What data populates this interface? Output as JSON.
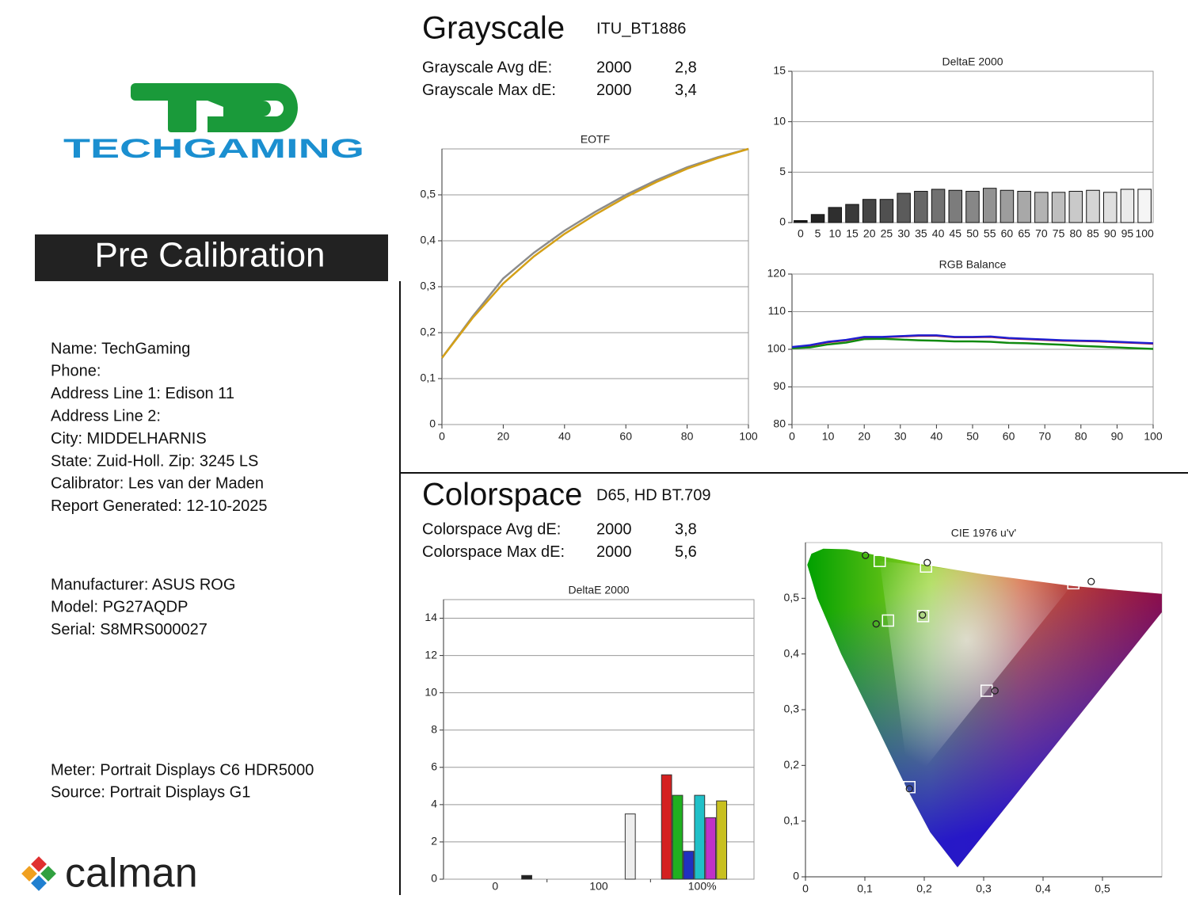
{
  "logo": {
    "brand": "TECHGAMING"
  },
  "banner": "Pre Calibration",
  "info": [
    "Name: TechGaming",
    "Phone:",
    "Address Line 1: Edison 11",
    "Address Line 2:",
    "City: MIDDELHARNIS",
    "State: Zuid-Holl.   Zip: 3245 LS",
    "Calibrator: Les van der Maden",
    "Report Generated: 12-10-2025"
  ],
  "device": [
    "Manufacturer: ASUS ROG",
    "Model: PG27AQDP",
    "Serial: S8MRS000027"
  ],
  "meter": [
    "Meter: Portrait Displays C6 HDR5000",
    "Source: Portrait Displays G1"
  ],
  "footer": {
    "brand": "calman"
  },
  "grayscale": {
    "title": "Grayscale",
    "standard": "ITU_BT1886",
    "rows": [
      [
        "Grayscale Avg dE:",
        "2000",
        "2,8"
      ],
      [
        "Grayscale Max dE:",
        "2000",
        "3,4"
      ]
    ]
  },
  "colorspace": {
    "title": "Colorspace",
    "standard": "D65, HD BT.709",
    "rows": [
      [
        "Colorspace Avg dE:",
        "2000",
        "3,8"
      ],
      [
        "Colorspace Max dE:",
        "2000",
        "5,6"
      ]
    ]
  },
  "chart_data": [
    {
      "type": "line",
      "title": "EOTF",
      "x": [
        0,
        10,
        20,
        30,
        40,
        50,
        60,
        70,
        80,
        90,
        100
      ],
      "series": [
        {
          "color": "#8c8c8c",
          "values": [
            0.145,
            0.235,
            0.318,
            0.374,
            0.422,
            0.463,
            0.5,
            0.532,
            0.56,
            0.582,
            0.6
          ]
        },
        {
          "color": "#d4a017",
          "values": [
            0.145,
            0.232,
            0.307,
            0.366,
            0.415,
            0.457,
            0.495,
            0.528,
            0.557,
            0.58,
            0.6
          ]
        }
      ],
      "xlim": [
        0,
        100
      ],
      "xticks": [
        0,
        20,
        40,
        60,
        80,
        100
      ],
      "ylim": [
        0,
        0.6
      ],
      "yticks": [
        0,
        {
          "value": 0.1,
          "label": "0,1"
        },
        {
          "value": 0.2,
          "label": "0,2"
        },
        {
          "value": 0.3,
          "label": "0,3"
        },
        {
          "value": 0.4,
          "label": "0,4"
        },
        {
          "value": 0.5,
          "label": "0,5"
        }
      ],
      "grid": true
    },
    {
      "type": "bar",
      "title": "DeltaE 2000",
      "categories": [
        "0",
        "5",
        "10",
        "15",
        "20",
        "25",
        "30",
        "35",
        "40",
        "45",
        "50",
        "55",
        "60",
        "65",
        "70",
        "75",
        "80",
        "85",
        "90",
        "95",
        "100"
      ],
      "values": [
        0.2,
        0.8,
        1.5,
        1.8,
        2.3,
        2.3,
        2.9,
        3.1,
        3.3,
        3.2,
        3.1,
        3.4,
        3.2,
        3.1,
        3.0,
        3.0,
        3.1,
        3.2,
        3.0,
        3.3,
        3.3
      ],
      "color": "gray-ramp",
      "ylim": [
        0,
        15
      ],
      "yticks": [
        0,
        5,
        10,
        15
      ],
      "grid": true
    },
    {
      "type": "line",
      "title": "RGB Balance",
      "x": [
        0,
        5,
        10,
        15,
        20,
        25,
        30,
        35,
        40,
        45,
        50,
        55,
        60,
        65,
        70,
        75,
        80,
        85,
        90,
        95,
        100
      ],
      "series": [
        {
          "color": "#d01010",
          "values": [
            100.5,
            101.0,
            101.9,
            102.4,
            103.2,
            103.2,
            103.4,
            103.6,
            103.6,
            103.2,
            103.2,
            103.3,
            102.9,
            102.7,
            102.5,
            102.3,
            102.2,
            102.1,
            101.9,
            101.7,
            101.5
          ]
        },
        {
          "color": "#108a10",
          "values": [
            100.3,
            100.5,
            101.3,
            101.8,
            102.7,
            102.8,
            102.6,
            102.4,
            102.3,
            102.1,
            102.1,
            102.0,
            101.7,
            101.6,
            101.4,
            101.2,
            100.9,
            100.7,
            100.5,
            100.3,
            100.1
          ]
        },
        {
          "color": "#2020d0",
          "values": [
            100.6,
            101.1,
            102.0,
            102.5,
            103.3,
            103.3,
            103.5,
            103.7,
            103.7,
            103.3,
            103.3,
            103.4,
            103.0,
            102.8,
            102.6,
            102.4,
            102.3,
            102.2,
            102.0,
            101.8,
            101.6
          ]
        }
      ],
      "xlim": [
        0,
        100
      ],
      "xticks": [
        0,
        10,
        20,
        30,
        40,
        50,
        60,
        70,
        80,
        90,
        100
      ],
      "ylim": [
        80,
        120
      ],
      "yticks": [
        80,
        90,
        100,
        110,
        120
      ],
      "grid": true
    },
    {
      "type": "grouped-bar",
      "title": "DeltaE 2000",
      "categories": [
        "0",
        "100",
        "100%"
      ],
      "values": [
        [
          0.2
        ],
        [
          3.5
        ],
        [
          5.6,
          4.5,
          1.5,
          4.5,
          3.3,
          4.2
        ]
      ],
      "colors": [
        [
          "#222222"
        ],
        [
          "#eeeeee"
        ],
        [
          "#d42020",
          "#20b020",
          "#2030c0",
          "#20c0c8",
          "#c030c8",
          "#c8c020"
        ]
      ],
      "ylim": [
        0,
        15
      ],
      "yticks": [
        0,
        2,
        4,
        6,
        8,
        10,
        12,
        14
      ],
      "grid": true
    },
    {
      "type": "cie",
      "title": "CIE 1976 u'v'",
      "series": [
        {
          "marker": "square",
          "x": [
            0.451,
            0.125,
            0.175,
            0.139,
            0.305,
            0.203,
            0.198
          ],
          "values": [
            0.527,
            0.567,
            0.161,
            0.46,
            0.334,
            0.557,
            0.468
          ]
        },
        {
          "marker": "circle",
          "x": [
            0.481,
            0.101,
            0.175,
            0.119,
            0.319,
            0.205,
            0.197
          ],
          "values": [
            0.53,
            0.577,
            0.158,
            0.454,
            0.334,
            0.564,
            0.47
          ]
        }
      ],
      "xlim": [
        0,
        0.6
      ],
      "xticks": [
        0,
        {
          "value": 0.1,
          "label": "0,1"
        },
        {
          "value": 0.2,
          "label": "0,2"
        },
        {
          "value": 0.3,
          "label": "0,3"
        },
        {
          "value": 0.4,
          "label": "0,4"
        },
        {
          "value": 0.5,
          "label": "0,5"
        }
      ],
      "ylim": [
        0,
        0.6
      ],
      "yticks": [
        0,
        {
          "value": 0.1,
          "label": "0,1"
        },
        {
          "value": 0.2,
          "label": "0,2"
        },
        {
          "value": 0.3,
          "label": "0,3"
        },
        {
          "value": 0.4,
          "label": "0,4"
        },
        {
          "value": 0.5,
          "label": "0,5"
        }
      ]
    }
  ]
}
